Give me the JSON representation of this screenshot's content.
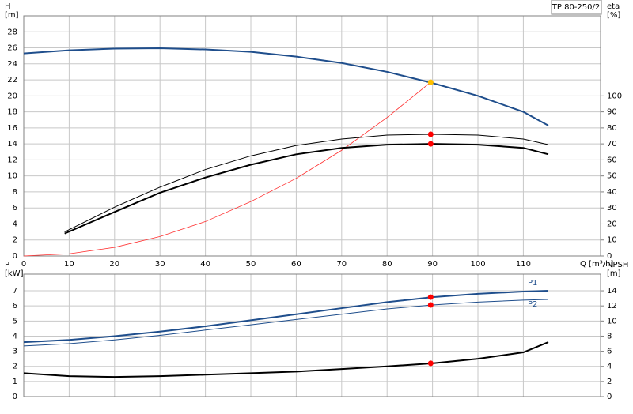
{
  "label": "TP 80-250/2",
  "chart_data": [
    {
      "type": "line",
      "ylabel": [
        "H",
        "[m]"
      ],
      "y2label": [
        "eta",
        "[%]"
      ],
      "xlabel": "Q [m³/h]",
      "xlim": [
        0,
        127
      ],
      "ylim": [
        0,
        30
      ],
      "y2lim": [
        0,
        150
      ],
      "xticks": [
        0,
        10,
        20,
        30,
        40,
        50,
        60,
        70,
        80,
        90,
        100,
        110
      ],
      "xtick_labels": true,
      "yticks": [
        0,
        2,
        4,
        6,
        8,
        10,
        12,
        14,
        16,
        18,
        20,
        22,
        24,
        26,
        28
      ],
      "y2ticks": [
        0,
        10,
        20,
        30,
        40,
        50,
        60,
        70,
        80,
        90,
        100
      ],
      "grid": true,
      "series": [
        {
          "color": "#1f4e8c",
          "linewidth": 2,
          "x": [
            0,
            10,
            20,
            30,
            40,
            50,
            60,
            70,
            80,
            90,
            100,
            110,
            115.5
          ],
          "values": [
            25.3,
            25.7,
            25.9,
            25.95,
            25.8,
            25.5,
            24.9,
            24.1,
            23.0,
            21.6,
            20.0,
            18.0,
            16.3
          ]
        },
        {
          "color": "#ff3030",
          "linewidth": 0.8,
          "x": [
            0,
            10,
            20,
            30,
            40,
            50,
            60,
            70,
            80,
            89.6
          ],
          "values": [
            0,
            0.27,
            1.08,
            2.43,
            4.3,
            6.8,
            9.7,
            13.2,
            17.3,
            21.7
          ],
          "marker": {
            "x": 89.6,
            "y": 21.7,
            "color": "#ffc000"
          }
        },
        {
          "color": "#000000",
          "linewidth": 1,
          "axis": "y2",
          "x": [
            9,
            20,
            30,
            40,
            50,
            60,
            70,
            80,
            90,
            100,
            110,
            115.5
          ],
          "values": [
            15,
            30.5,
            43,
            54,
            62.5,
            69,
            73,
            75.5,
            76,
            75.5,
            73,
            69.5
          ],
          "marker": {
            "x": 89.6,
            "y": 76,
            "color": "#ff0000"
          }
        },
        {
          "color": "#000000",
          "linewidth": 2,
          "axis": "y2",
          "x": [
            9,
            20,
            30,
            40,
            50,
            60,
            70,
            80,
            90,
            100,
            110,
            115.5
          ],
          "values": [
            14,
            27.5,
            39.5,
            49,
            57,
            63.5,
            67.5,
            69.5,
            70,
            69.5,
            67.5,
            63.5
          ],
          "marker": {
            "x": 89.6,
            "y": 70,
            "color": "#ff0000"
          }
        }
      ]
    },
    {
      "type": "line",
      "ylabel": [
        "P",
        "[kW]"
      ],
      "y2label": [
        "NPSH",
        "[m]"
      ],
      "xlim": [
        0,
        127
      ],
      "ylim": [
        0,
        8.1
      ],
      "y2lim": [
        0,
        16.2
      ],
      "xticks": [
        0,
        10,
        20,
        30,
        40,
        50,
        60,
        70,
        80,
        90,
        100,
        110
      ],
      "xtick_labels": false,
      "yticks": [
        0,
        1,
        2,
        3,
        4,
        5,
        6,
        7
      ],
      "y2ticks": [
        0,
        2,
        4,
        6,
        8,
        10,
        12,
        14
      ],
      "grid": true,
      "series": [
        {
          "name": "P1",
          "color": "#1f4e8c",
          "linewidth": 2,
          "x": [
            0,
            10,
            20,
            30,
            40,
            50,
            60,
            70,
            80,
            90,
            100,
            110,
            115.5
          ],
          "values": [
            3.6,
            3.75,
            4.0,
            4.3,
            4.65,
            5.05,
            5.45,
            5.85,
            6.25,
            6.58,
            6.8,
            6.95,
            7.0
          ],
          "marker": {
            "x": 89.6,
            "y": 6.58,
            "color": "#ff0000"
          }
        },
        {
          "name": "P2",
          "color": "#1f4e8c",
          "linewidth": 1,
          "x": [
            0,
            10,
            20,
            30,
            40,
            50,
            60,
            70,
            80,
            90,
            100,
            110,
            115.5
          ],
          "values": [
            3.35,
            3.5,
            3.75,
            4.05,
            4.4,
            4.75,
            5.1,
            5.45,
            5.8,
            6.06,
            6.25,
            6.38,
            6.43
          ],
          "marker": {
            "x": 89.6,
            "y": 6.06,
            "color": "#ff0000"
          }
        },
        {
          "color": "#000000",
          "linewidth": 2,
          "axis": "y2",
          "x": [
            0,
            10,
            20,
            30,
            40,
            50,
            60,
            70,
            80,
            90,
            100,
            110,
            115.5
          ],
          "values": [
            3.1,
            2.7,
            2.6,
            2.7,
            2.9,
            3.1,
            3.3,
            3.65,
            4.0,
            4.4,
            5.0,
            5.85,
            7.2
          ],
          "marker": {
            "x": 89.6,
            "y": 4.4,
            "color": "#ff0000"
          }
        }
      ]
    }
  ]
}
